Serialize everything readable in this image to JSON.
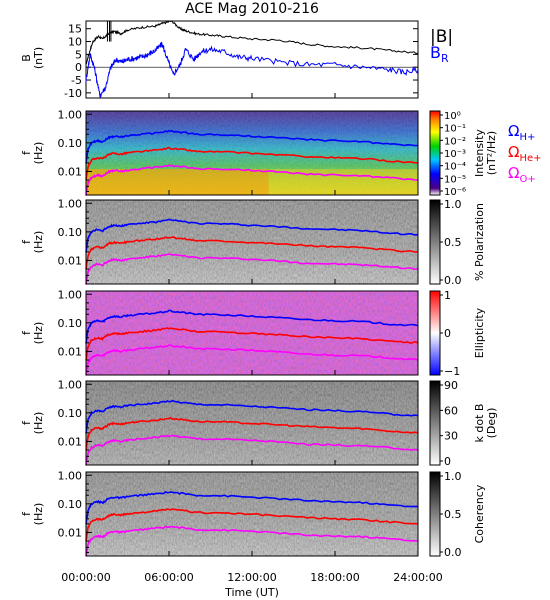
{
  "title": "ACE Mag 2010-216",
  "colors": {
    "B_total": "#000000",
    "B_R": "#0000ff",
    "H_plus": "#0000ff",
    "He_plus": "#ff0000",
    "O_plus": "#ff00ff"
  },
  "chart_data": [
    {
      "type": "line",
      "title": "ACE Mag 2010-216",
      "ylabel": "B (nT)",
      "yticks": [
        "15",
        "10",
        "5",
        "0",
        "-5",
        "-10"
      ],
      "ylim": [
        -12,
        18
      ],
      "xlim": [
        0,
        24
      ],
      "legend": [
        "|B|",
        "B_R"
      ],
      "series": [
        {
          "name": "|B|",
          "x": [
            0,
            0.2,
            0.5,
            0.9,
            1.2,
            1.6,
            2,
            2.5,
            3,
            4,
            5,
            5.5,
            6.2,
            6.8,
            7.3,
            8,
            9,
            10,
            12,
            14,
            16,
            18,
            20,
            22,
            24
          ],
          "y": [
            1,
            5,
            10,
            12,
            11,
            13,
            14,
            13,
            14.5,
            15.5,
            16,
            17,
            18,
            15,
            14,
            13,
            12.5,
            12,
            11,
            10.5,
            9,
            8,
            7.5,
            6.5,
            5.5
          ]
        },
        {
          "name": "B_R",
          "x": [
            0,
            0.3,
            0.6,
            1,
            1.4,
            1.8,
            2.2,
            2.6,
            3,
            3.5,
            4,
            4.5,
            5,
            5.5,
            5.9,
            6.3,
            6.8,
            7.2,
            7.8,
            8.3,
            9,
            10,
            11,
            12,
            14,
            16,
            18,
            20,
            22,
            23,
            24
          ],
          "y": [
            -5,
            5,
            0,
            -11,
            -8,
            0,
            3,
            2,
            3,
            3.5,
            4,
            5,
            6.5,
            9,
            3,
            -3,
            1,
            7,
            3,
            6,
            7,
            6,
            4,
            3.5,
            2,
            1,
            1,
            0,
            -1,
            -2,
            -1
          ]
        }
      ]
    },
    {
      "type": "heatmap",
      "ylabel": "f (Hz)",
      "yscale": "log",
      "yticks": [
        "1.00",
        "0.10",
        "0.01"
      ],
      "colorbar_label": "Intensity (nT²/Hz)",
      "colorbar_ticks": [
        "10⁰",
        "10⁻¹",
        "10⁻²",
        "10⁻³",
        "10⁻⁴",
        "10⁻⁵",
        "10⁻⁶"
      ]
    },
    {
      "type": "heatmap",
      "ylabel": "f (Hz)",
      "yscale": "log",
      "yticks": [
        "1.00",
        "0.10",
        "0.01"
      ],
      "colorbar_label": "% Polarization",
      "colorbar_ticks": [
        "1.0",
        "0.5",
        "0.0"
      ]
    },
    {
      "type": "heatmap",
      "ylabel": "f (Hz)",
      "yscale": "log",
      "yticks": [
        "1.00",
        "0.10",
        "0.01"
      ],
      "colorbar_label": "Ellipticity",
      "colorbar_ticks": [
        "1",
        "0",
        "−1"
      ]
    },
    {
      "type": "heatmap",
      "ylabel": "f (Hz)",
      "yscale": "log",
      "yticks": [
        "1.00",
        "0.10",
        "0.01"
      ],
      "colorbar_label": "k dot B (Deg)",
      "colorbar_ticks": [
        "90",
        "60",
        "30",
        "0"
      ]
    },
    {
      "type": "heatmap",
      "ylabel": "f (Hz)",
      "yscale": "log",
      "yticks": [
        "1.00",
        "0.10",
        "0.01"
      ],
      "colorbar_label": "Coherency",
      "colorbar_ticks": [
        "1.0",
        "0.5",
        "0.0"
      ],
      "xlabel": "Time (UT)",
      "xticks": [
        "00:00:00",
        "06:00:00",
        "12:00:00",
        "18:00:00",
        "24:00:00"
      ]
    }
  ],
  "gyrofrequency_lines": {
    "x_hours": [
      0,
      0.15,
      0.4,
      0.8,
      1.2,
      1.6,
      2.0,
      2.5,
      3,
      4,
      5,
      6,
      7,
      8,
      10,
      12,
      14,
      16,
      18,
      20,
      22,
      24
    ],
    "H_plus_hz": [
      0.02,
      0.06,
      0.1,
      0.12,
      0.11,
      0.15,
      0.17,
      0.16,
      0.18,
      0.2,
      0.22,
      0.26,
      0.23,
      0.2,
      0.19,
      0.17,
      0.15,
      0.13,
      0.12,
      0.11,
      0.09,
      0.08
    ],
    "He_plus_hz": [
      0.005,
      0.015,
      0.025,
      0.03,
      0.028,
      0.038,
      0.043,
      0.04,
      0.045,
      0.05,
      0.055,
      0.065,
      0.058,
      0.05,
      0.048,
      0.043,
      0.038,
      0.033,
      0.03,
      0.028,
      0.023,
      0.02
    ],
    "O_plus_hz": [
      0.0015,
      0.004,
      0.006,
      0.0075,
      0.007,
      0.0095,
      0.011,
      0.01,
      0.011,
      0.0125,
      0.014,
      0.016,
      0.0145,
      0.0125,
      0.012,
      0.011,
      0.0095,
      0.008,
      0.0075,
      0.007,
      0.006,
      0.005
    ]
  },
  "labels": {
    "b_total": "|B|",
    "b_r_main": "B",
    "b_r_sub": "R",
    "omega_h_main": "Ω",
    "omega_h_sub": "H+",
    "omega_he_main": "Ω",
    "omega_he_sub": "He+",
    "omega_o_main": "Ω",
    "omega_o_sub": "O+"
  }
}
